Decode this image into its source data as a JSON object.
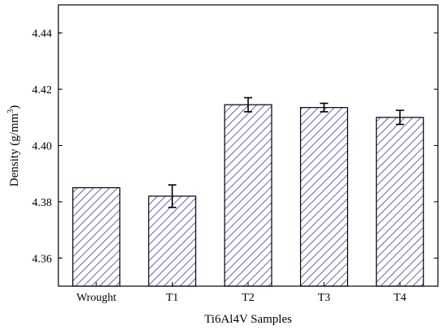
{
  "chart_data": {
    "type": "bar",
    "categories": [
      "Wrought",
      "T1",
      "T2",
      "T3",
      "T4"
    ],
    "values": [
      4.385,
      4.382,
      4.4145,
      4.4135,
      4.41
    ],
    "error": [
      null,
      0.004,
      0.0025,
      0.0015,
      0.0025
    ],
    "xlabel": "Ti6Al4V Samples",
    "ylabel": "Density (g/mm",
    "ylabel_sup": "3",
    "ylabel_end": ")",
    "ylim": [
      4.35,
      4.45
    ],
    "yticks": [
      4.36,
      4.38,
      4.4,
      4.42,
      4.44
    ],
    "ytick_labels": [
      "4.36",
      "4.38",
      "4.40",
      "4.42",
      "4.44"
    ],
    "grid": false,
    "bar_color": "#3b3ba8"
  }
}
